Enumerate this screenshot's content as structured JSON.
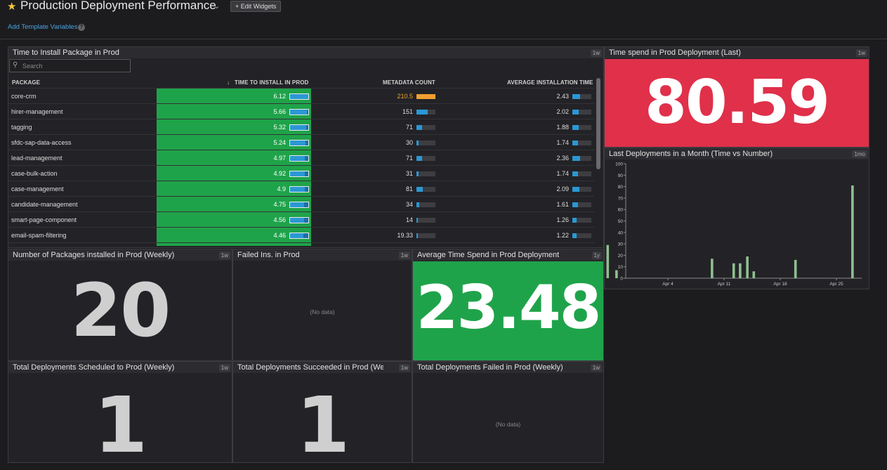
{
  "header": {
    "title": "Production Deployment Performance",
    "edit_widgets_label": "Edit Widgets",
    "template_vars_link": "Add Template Variables",
    "help_glyph": "?"
  },
  "table_widget": {
    "title": "Time to Install Package in Prod",
    "badge": "1w",
    "search_placeholder": "Search",
    "columns": {
      "package": "PACKAGE",
      "time_to_install": "TIME TO INSTALL IN PROD",
      "metadata_count": "METADATA COUNT",
      "avg_install_time": "AVERAGE INSTALLATION TIME"
    },
    "rows": [
      {
        "package": "core-crm",
        "tti": "6.12",
        "tti_frac": 1.0,
        "mc": "210.5",
        "mc_frac": 1.0,
        "mc_warn": true,
        "ait": "2.43",
        "ait_frac": 0.42
      },
      {
        "package": "hirer-management",
        "tti": "5.66",
        "tti_frac": 0.92,
        "mc": "151",
        "mc_frac": 0.6,
        "mc_warn": false,
        "ait": "2.02",
        "ait_frac": 0.35
      },
      {
        "package": "tagging",
        "tti": "5.32",
        "tti_frac": 0.87,
        "mc": "71",
        "mc_frac": 0.28,
        "mc_warn": false,
        "ait": "1.88",
        "ait_frac": 0.32
      },
      {
        "package": "sfdc-sap-data-access",
        "tti": "5.24",
        "tti_frac": 0.86,
        "mc": "30",
        "mc_frac": 0.12,
        "mc_warn": false,
        "ait": "1.74",
        "ait_frac": 0.3
      },
      {
        "package": "lead-management",
        "tti": "4.97",
        "tti_frac": 0.81,
        "mc": "71",
        "mc_frac": 0.28,
        "mc_warn": false,
        "ait": "2.36",
        "ait_frac": 0.41
      },
      {
        "package": "case-bulk-action",
        "tti": "4.92",
        "tti_frac": 0.8,
        "mc": "31",
        "mc_frac": 0.12,
        "mc_warn": false,
        "ait": "1.74",
        "ait_frac": 0.3
      },
      {
        "package": "case-management",
        "tti": "4.9",
        "tti_frac": 0.8,
        "mc": "81",
        "mc_frac": 0.32,
        "mc_warn": false,
        "ait": "2.09",
        "ait_frac": 0.36
      },
      {
        "package": "candidate-management",
        "tti": "4.75",
        "tti_frac": 0.78,
        "mc": "34",
        "mc_frac": 0.13,
        "mc_warn": false,
        "ait": "1.61",
        "ait_frac": 0.28
      },
      {
        "package": "smart-page-component",
        "tti": "4.56",
        "tti_frac": 0.75,
        "mc": "14",
        "mc_frac": 0.06,
        "mc_warn": false,
        "ait": "1.26",
        "ait_frac": 0.22
      },
      {
        "package": "email-spam-filtering",
        "tti": "4.46",
        "tti_frac": 0.73,
        "mc": "19.33",
        "mc_frac": 0.08,
        "mc_warn": false,
        "ait": "1.22",
        "ait_frac": 0.21
      },
      {
        "package": "",
        "tti": "",
        "tti_frac": 0,
        "mc": "",
        "mc_frac": 0,
        "mc_warn": false,
        "ait": "",
        "ait_frac": 0
      }
    ]
  },
  "last_time_widget": {
    "title": "Time spend in Prod Deployment (Last)",
    "badge": "1w",
    "value": "80.59",
    "color": "#e0304a"
  },
  "chart_widget": {
    "title": "Last Deployments in a Month (Time vs Number)",
    "badge": "1mo"
  },
  "packages_widget": {
    "title": "Number of Packages installed in Prod (Weekly)",
    "badge": "1w",
    "value": "20"
  },
  "failed_ins_widget": {
    "title": "Failed Ins. in Prod",
    "badge": "1w",
    "value": "(No data)"
  },
  "avg_time_widget": {
    "title": "Average Time Spend in Prod Deployment",
    "badge": "1y",
    "value": "23.48",
    "color": "#1fa34a"
  },
  "scheduled_widget": {
    "title": "Total Deployments Scheduled to Prod (Weekly)",
    "badge": "1w",
    "value": "1"
  },
  "succeeded_widget": {
    "title": "Total Deployments Succeeded in Prod (We...",
    "badge": "1w",
    "value": "1"
  },
  "failed_widget": {
    "title": "Total Deployments Failed in Prod (Weekly)",
    "badge": "1w",
    "value": "(No data)"
  },
  "chart_data": {
    "type": "bar",
    "title": "Last Deployments in a Month (Time vs Number)",
    "ylim": [
      0,
      100
    ],
    "yticks": [
      0,
      10,
      20,
      30,
      40,
      50,
      60,
      70,
      80,
      90,
      100
    ],
    "x_ticks": [
      "Apr 4",
      "Apr 11",
      "Apr 18",
      "Apr 25"
    ],
    "x_tick_days": [
      4,
      11,
      18,
      25
    ],
    "x_day_range": [
      27,
      28.5
    ],
    "bar_color": "#8fbf8f",
    "bars": [
      {
        "day": 27.5,
        "value": 29
      },
      {
        "day": 28.6,
        "value": 7
      },
      {
        "day": 9.5,
        "value": 17
      },
      {
        "day": 12.2,
        "value": 13
      },
      {
        "day": 13.0,
        "value": 13
      },
      {
        "day": 13.9,
        "value": 19
      },
      {
        "day": 14.7,
        "value": 6
      },
      {
        "day": 19.9,
        "value": 16
      },
      {
        "day": 27.0,
        "value": 81
      }
    ]
  }
}
